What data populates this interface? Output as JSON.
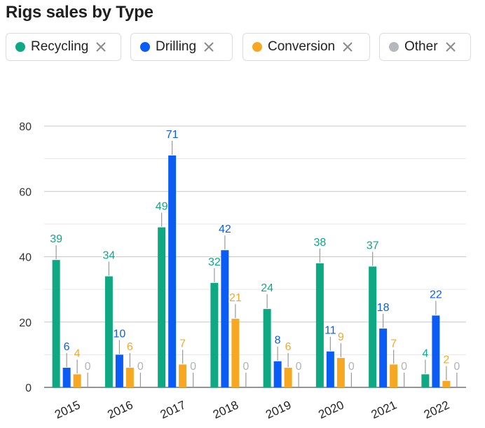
{
  "title": "Rigs sales by Type",
  "legend": [
    {
      "label": "Recycling",
      "color": "#0ea882"
    },
    {
      "label": "Drilling",
      "color": "#0a5cf5"
    },
    {
      "label": "Conversion",
      "color": "#f7a823"
    },
    {
      "label": "Other",
      "color": "#b5b8bd"
    }
  ],
  "chart_data": {
    "type": "bar",
    "title": "Rigs sales by Type",
    "categories": [
      "2015",
      "2016",
      "2017",
      "2018",
      "2019",
      "2020",
      "2021",
      "2022"
    ],
    "series": [
      {
        "name": "Recycling",
        "color": "#0ea882",
        "values": [
          39,
          34,
          49,
          32,
          24,
          38,
          37,
          4
        ]
      },
      {
        "name": "Drilling",
        "color": "#0a5cf5",
        "values": [
          6,
          10,
          71,
          42,
          8,
          11,
          18,
          22
        ]
      },
      {
        "name": "Conversion",
        "color": "#f7a823",
        "values": [
          4,
          6,
          7,
          21,
          6,
          9,
          7,
          2
        ]
      },
      {
        "name": "Other",
        "color": "#b5b8bd",
        "values": [
          0,
          0,
          0,
          0,
          0,
          0,
          0,
          0
        ]
      }
    ],
    "yticks": [
      0,
      20,
      40,
      60,
      80
    ],
    "ylim": [
      0,
      80
    ],
    "xlabel": "",
    "ylabel": "",
    "grid": true,
    "legend_position": "top"
  }
}
